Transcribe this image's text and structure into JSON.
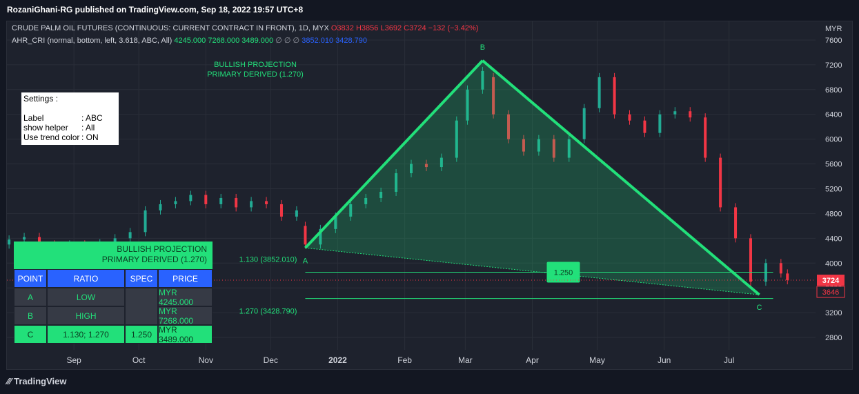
{
  "header": {
    "published": "RozaniGhani-RG published on TradingView.com, Sep 18, 2022 19:57 UTC+8"
  },
  "footer": {
    "brand": "TradingView"
  },
  "legend": {
    "symbol": "CRUDE PALM OIL FUTURES (CONTINUOUS: CURRENT CONTRACT IN FRONT), 1D, MYX",
    "o_label": "O",
    "o": "3832",
    "h_label": "H",
    "h": "3856",
    "l_label": "L",
    "l": "3692",
    "c_label": "C",
    "c": "3724",
    "chg": "−132 (−3.42%)",
    "indicator": "AHR_CRI (normal, bottom, left, 3.618, ABC, All)",
    "v1": "4245.000",
    "v2": "7268.000",
    "v3": "3489.000",
    "v4": "∅",
    "v5": "∅",
    "v6": "∅",
    "v7": "3852.010",
    "v8": "3428.790"
  },
  "settings": {
    "title": "Settings  :",
    "rows": [
      {
        "k": "Label",
        "v": ": ABC"
      },
      {
        "k": "show helper",
        "v": ": All"
      },
      {
        "k": "Use trend color",
        "v": ": ON"
      }
    ]
  },
  "projection_label": {
    "line1": "BULLISH PROJECTION",
    "line2": "PRIMARY DERIVED (1.270)"
  },
  "table": {
    "title1": "BULLISH PROJECTION",
    "title2": "PRIMARY DERIVED (1.270)",
    "headers": [
      "POINT",
      "RATIO",
      "SPEC",
      "PRICE"
    ],
    "rows": [
      [
        "A",
        "LOW",
        "",
        "MYR 4245.000"
      ],
      [
        "B",
        "HIGH",
        "",
        "MYR 7268.000"
      ],
      [
        "C",
        "1.130; 1.270",
        "1.250",
        "MYR 3489.000"
      ]
    ]
  },
  "chart_data": {
    "type": "candlestick",
    "currency": "MYR",
    "interval": "1D",
    "y_ticks": [
      2800,
      3200,
      3600,
      4000,
      4400,
      4800,
      5200,
      5600,
      6000,
      6400,
      6800,
      7200,
      7600
    ],
    "y_tick_labels": [
      "2800",
      "3200",
      "3600",
      "4000",
      "4400",
      "4800",
      "5200",
      "5600",
      "6000",
      "6400",
      "6800",
      "7200",
      "7600"
    ],
    "ylim": [
      2600,
      7900
    ],
    "x_tick_labels": [
      "Sep",
      "Oct",
      "Nov",
      "Dec",
      "2022",
      "Feb",
      "Mar",
      "Apr",
      "May",
      "Jun",
      "Jul"
    ],
    "x_tick_dates": [
      "2021-09-01",
      "2021-10-01",
      "2021-11-01",
      "2021-12-01",
      "2022-01-01",
      "2022-02-01",
      "2022-03-01",
      "2022-04-01",
      "2022-05-01",
      "2022-06-01",
      "2022-07-01"
    ],
    "x_range": [
      "2021-08-01",
      "2022-08-10"
    ],
    "last_price": "3724",
    "second_price_tag": "3646",
    "points": [
      {
        "label": "A",
        "date": "2021-12-17",
        "price": 4245
      },
      {
        "label": "B",
        "date": "2022-03-09",
        "price": 7268
      },
      {
        "label": "C",
        "date": "2022-07-15",
        "price": 3489
      }
    ],
    "levels": [
      {
        "label": "1.130 (3852.010)",
        "value": 3852.01
      },
      {
        "label": "1.270 (3428.790)",
        "value": 3428.79
      }
    ],
    "spec_label": "1.250",
    "closes": [
      {
        "date": "2021-08-02",
        "o": 4300,
        "c": 4380
      },
      {
        "date": "2021-08-09",
        "o": 4380,
        "c": 4420
      },
      {
        "date": "2021-08-16",
        "o": 4420,
        "c": 4300
      },
      {
        "date": "2021-08-23",
        "o": 4300,
        "c": 4250
      },
      {
        "date": "2021-08-30",
        "o": 4250,
        "c": 4300
      },
      {
        "date": "2021-09-06",
        "o": 4300,
        "c": 4280
      },
      {
        "date": "2021-09-13",
        "o": 4280,
        "c": 4320
      },
      {
        "date": "2021-09-20",
        "o": 4320,
        "c": 4400
      },
      {
        "date": "2021-09-27",
        "o": 4400,
        "c": 4500
      },
      {
        "date": "2021-10-04",
        "o": 4500,
        "c": 4850
      },
      {
        "date": "2021-10-11",
        "o": 4850,
        "c": 4950
      },
      {
        "date": "2021-10-18",
        "o": 4950,
        "c": 5000
      },
      {
        "date": "2021-10-25",
        "o": 5000,
        "c": 5100
      },
      {
        "date": "2021-11-01",
        "o": 5100,
        "c": 4950
      },
      {
        "date": "2021-11-08",
        "o": 4950,
        "c": 5050
      },
      {
        "date": "2021-11-15",
        "o": 5050,
        "c": 4900
      },
      {
        "date": "2021-11-22",
        "o": 4900,
        "c": 5000
      },
      {
        "date": "2021-11-29",
        "o": 5000,
        "c": 4950
      },
      {
        "date": "2021-12-06",
        "o": 4950,
        "c": 4750
      },
      {
        "date": "2021-12-13",
        "o": 4750,
        "c": 4850
      },
      {
        "date": "2021-12-17",
        "o": 4600,
        "c": 4300
      },
      {
        "date": "2021-12-24",
        "o": 4300,
        "c": 4550
      },
      {
        "date": "2021-12-31",
        "o": 4550,
        "c": 4750
      },
      {
        "date": "2022-01-07",
        "o": 4750,
        "c": 4950
      },
      {
        "date": "2022-01-14",
        "o": 4950,
        "c": 5050
      },
      {
        "date": "2022-01-21",
        "o": 5050,
        "c": 5150
      },
      {
        "date": "2022-01-28",
        "o": 5150,
        "c": 5450
      },
      {
        "date": "2022-02-04",
        "o": 5450,
        "c": 5600
      },
      {
        "date": "2022-02-11",
        "o": 5600,
        "c": 5550
      },
      {
        "date": "2022-02-18",
        "o": 5550,
        "c": 5700
      },
      {
        "date": "2022-02-25",
        "o": 5700,
        "c": 6300
      },
      {
        "date": "2022-03-02",
        "o": 6300,
        "c": 6800
      },
      {
        "date": "2022-03-09",
        "o": 6800,
        "c": 7100
      },
      {
        "date": "2022-03-14",
        "o": 7000,
        "c": 6400
      },
      {
        "date": "2022-03-21",
        "o": 6400,
        "c": 6000
      },
      {
        "date": "2022-03-28",
        "o": 6000,
        "c": 5800
      },
      {
        "date": "2022-04-04",
        "o": 5800,
        "c": 6000
      },
      {
        "date": "2022-04-11",
        "o": 6000,
        "c": 5700
      },
      {
        "date": "2022-04-18",
        "o": 5700,
        "c": 6000
      },
      {
        "date": "2022-04-25",
        "o": 6000,
        "c": 6500
      },
      {
        "date": "2022-05-02",
        "o": 6500,
        "c": 7000
      },
      {
        "date": "2022-05-09",
        "o": 7000,
        "c": 6400
      },
      {
        "date": "2022-05-16",
        "o": 6400,
        "c": 6300
      },
      {
        "date": "2022-05-23",
        "o": 6300,
        "c": 6100
      },
      {
        "date": "2022-05-30",
        "o": 6100,
        "c": 6400
      },
      {
        "date": "2022-06-06",
        "o": 6400,
        "c": 6450
      },
      {
        "date": "2022-06-13",
        "o": 6450,
        "c": 6350
      },
      {
        "date": "2022-06-20",
        "o": 6350,
        "c": 5700
      },
      {
        "date": "2022-06-27",
        "o": 5700,
        "c": 4900
      },
      {
        "date": "2022-07-04",
        "o": 4900,
        "c": 4400
      },
      {
        "date": "2022-07-11",
        "o": 4400,
        "c": 3700
      },
      {
        "date": "2022-07-18",
        "o": 3700,
        "c": 4000
      },
      {
        "date": "2022-07-25",
        "o": 4000,
        "c": 3832
      },
      {
        "date": "2022-07-28",
        "o": 3832,
        "c": 3724
      }
    ]
  }
}
